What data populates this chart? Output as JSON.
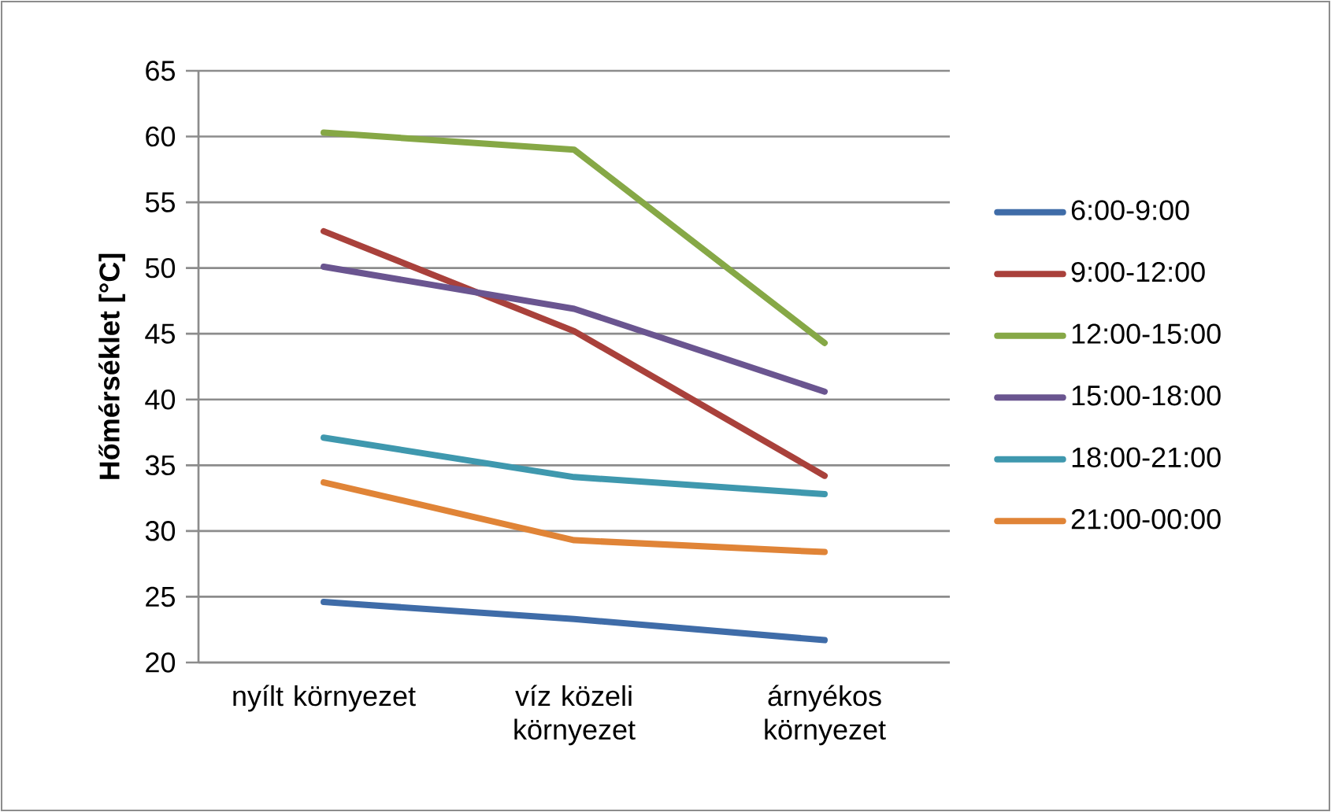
{
  "chart_data": {
    "type": "line",
    "ylabel": "Hőmérséklet [°C]",
    "categories": [
      "nyílt környezet",
      "víz közeli környezet",
      "árnyékos környezet"
    ],
    "series": [
      {
        "name": "6:00-9:00",
        "color": "#3f6ca8",
        "values": [
          24.6,
          23.3,
          21.7
        ]
      },
      {
        "name": "9:00-12:00",
        "color": "#a9413b",
        "values": [
          52.8,
          45.2,
          34.2
        ]
      },
      {
        "name": "12:00-15:00",
        "color": "#86a846",
        "values": [
          60.3,
          59.0,
          44.3
        ]
      },
      {
        "name": "15:00-18:00",
        "color": "#6a5590",
        "values": [
          50.1,
          46.9,
          40.6
        ]
      },
      {
        "name": "18:00-21:00",
        "color": "#3f98ae",
        "values": [
          37.1,
          34.1,
          32.8
        ]
      },
      {
        "name": "21:00-00:00",
        "color": "#e08437",
        "values": [
          33.7,
          29.3,
          28.4
        ]
      }
    ],
    "ylim": [
      20,
      65
    ],
    "yticks": [
      20,
      25,
      30,
      35,
      40,
      45,
      50,
      55,
      60,
      65
    ],
    "grid": "y",
    "legend": "right",
    "marker": "none",
    "line_style": "solid"
  }
}
